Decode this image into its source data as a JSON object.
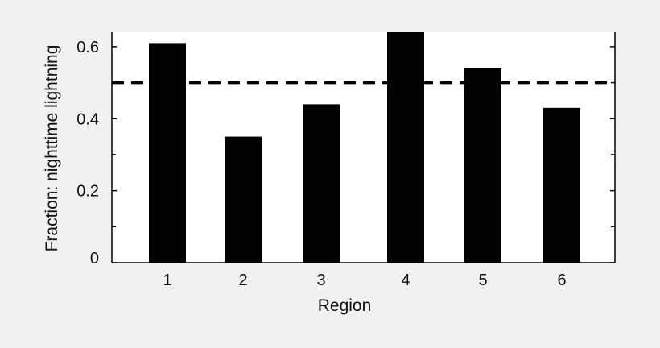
{
  "chart_data": {
    "type": "bar",
    "title": "",
    "xlabel": "Region",
    "ylabel": "Fraction: nighttime lightning",
    "categories": [
      "1",
      "2",
      "3",
      "4",
      "5",
      "6"
    ],
    "values": [
      0.61,
      0.35,
      0.44,
      0.64,
      0.54,
      0.43
    ],
    "ylim": [
      0,
      0.64
    ],
    "yticks": [
      {
        "value": 0,
        "label": "0"
      },
      {
        "value": 0.2,
        "label": "0.2"
      },
      {
        "value": 0.4,
        "label": "0.4"
      },
      {
        "value": 0.6,
        "label": "0.6"
      }
    ],
    "minor_yticks": [
      0.1,
      0.3,
      0.5
    ],
    "reference_line": {
      "value": 0.5,
      "style": "dashed"
    },
    "grid": false,
    "colors": {
      "bars": "#000000",
      "background": "#f1f1f1",
      "plot_background": "#ffffff"
    }
  }
}
